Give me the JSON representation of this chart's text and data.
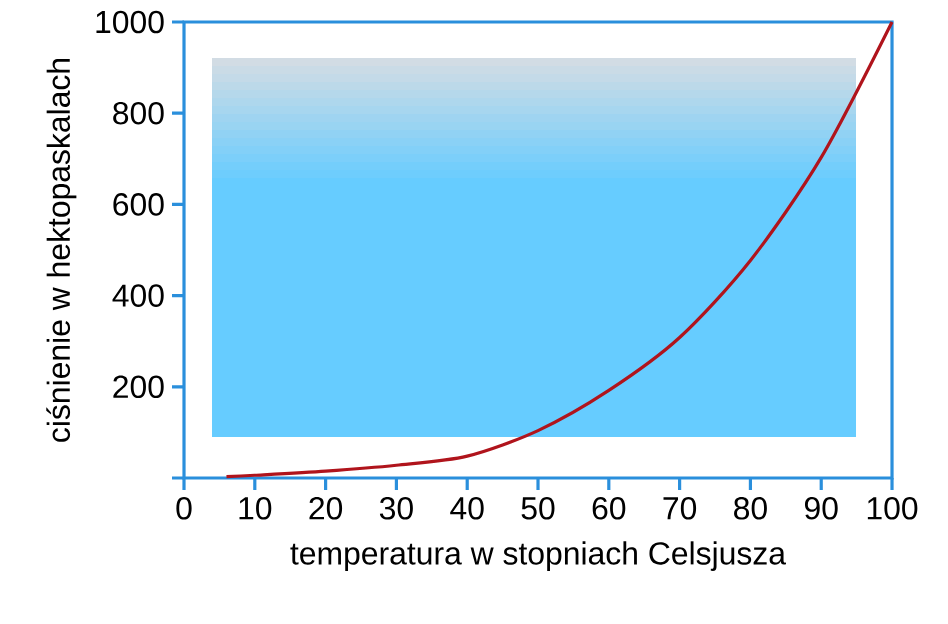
{
  "chart_data": {
    "type": "line",
    "xlabel": "temperatura w stopniach Celsjusza",
    "ylabel": "ciśnienie w hektopaskalach",
    "x": [
      6,
      10,
      20,
      30,
      40,
      50,
      60,
      70,
      80,
      90,
      100
    ],
    "series": [
      {
        "color": "#b0141c",
        "values": [
          3,
          6,
          15,
          28,
          48,
          104,
          192,
          308,
          477,
          703,
          1000
        ]
      }
    ],
    "xlim": [
      0,
      100
    ],
    "xticks": [
      0,
      10,
      20,
      30,
      40,
      50,
      60,
      70,
      80,
      90,
      100
    ],
    "ylim": [
      0,
      1000
    ],
    "yticks": [
      {
        "value": 0,
        "label": null
      },
      200,
      400,
      600,
      800,
      1000
    ],
    "marker": "none",
    "line_style": "solid"
  }
}
